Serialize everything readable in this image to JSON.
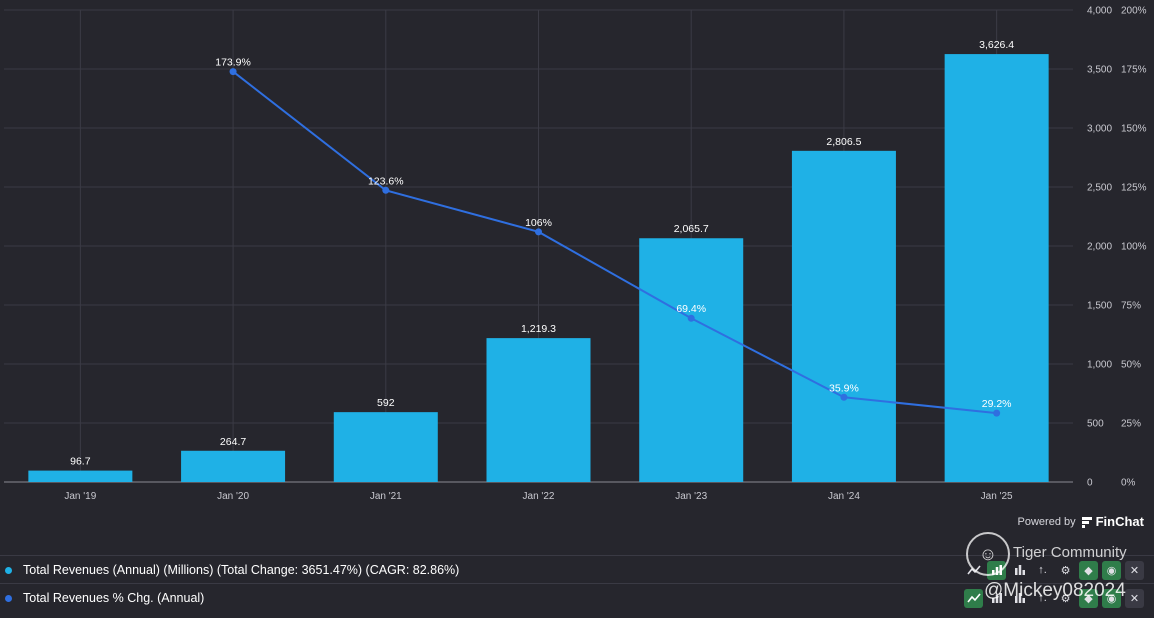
{
  "chart_data": {
    "type": "bar+line",
    "categories": [
      "Jan '19",
      "Jan '20",
      "Jan '21",
      "Jan '22",
      "Jan '23",
      "Jan '24",
      "Jan '25"
    ],
    "series": [
      {
        "name": "Total Revenues (Annual) (Millions) (Total Change: 3651.47%) (CAGR: 82.86%)",
        "type": "bar",
        "axis": "left",
        "color": "#1fb1e6",
        "values": [
          96.7,
          264.7,
          592,
          1219.3,
          2065.7,
          2806.5,
          3626.4
        ],
        "labels": [
          "96.7",
          "264.7",
          "592",
          "1,219.3",
          "2,065.7",
          "2,806.5",
          "3,626.4"
        ]
      },
      {
        "name": "Total Revenues % Chg. (Annual)",
        "type": "line",
        "axis": "right",
        "color": "#2f6fe0",
        "values": [
          null,
          173.9,
          123.6,
          106,
          69.4,
          35.9,
          29.2
        ],
        "labels": [
          "",
          "173.9%",
          "123.6%",
          "106%",
          "69.4%",
          "35.9%",
          "29.2%"
        ]
      }
    ],
    "y_left": {
      "range": [
        0,
        4000
      ],
      "ticks": [
        "0",
        "500",
        "1,000",
        "1,500",
        "2,000",
        "2,500",
        "3,000",
        "3,500",
        "4,000"
      ]
    },
    "y_right": {
      "range": [
        0,
        200
      ],
      "ticks": [
        "0%",
        "25%",
        "50%",
        "75%",
        "100%",
        "125%",
        "150%",
        "175%",
        "200%"
      ]
    },
    "grid": true
  },
  "footer": {
    "powered_by": "Powered by",
    "brand": "FinChat"
  },
  "legend": [
    {
      "label": "Total Revenues (Annual) (Millions) (Total Change: 3651.47%) (CAGR: 82.86%)",
      "color": "#1fb1e6"
    },
    {
      "label": "Total Revenues % Chg. (Annual)",
      "color": "#2f6fe0"
    }
  ],
  "watermark": {
    "title": "Tiger Community",
    "handle": "@Mickey082024"
  },
  "tool_icons": [
    "line-chart-icon",
    "bar-chart-icon",
    "column-chart-icon",
    "sort-icon",
    "gear-icon",
    "tag-icon",
    "eye-icon",
    "close-icon"
  ]
}
